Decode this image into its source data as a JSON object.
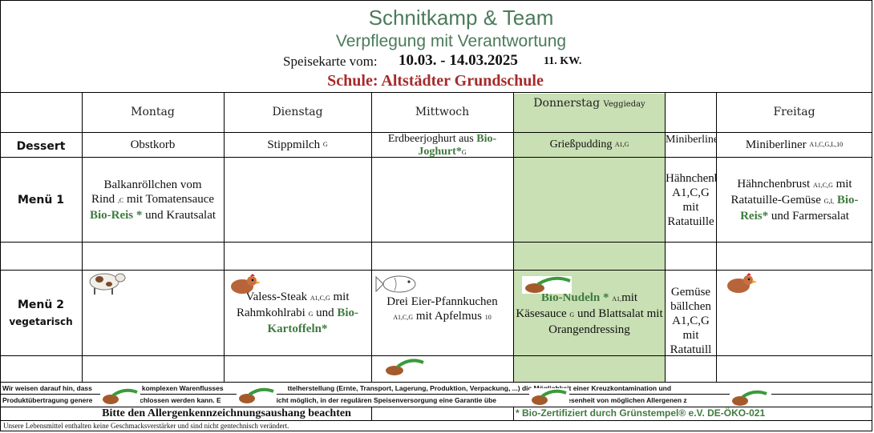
{
  "header": {
    "company": "Schnitkamp & Team",
    "slogan": "Verpflegung mit Verantwortung",
    "menu_label": "Speisekarte vom:",
    "date_range": "10.03. - 14.03.2025",
    "week": "11. KW.",
    "school": "Schule: Altstädter Grundschule"
  },
  "days": {
    "mon": "Montag",
    "tue": "Dienstag",
    "wed": "Mittwoch",
    "thu": "Donnerstag",
    "thu_tag": "Veggieday",
    "fri": "Freitag"
  },
  "rows": {
    "dessert": "Dessert",
    "menu1": "Menü 1",
    "menu2": "Menü 2",
    "menu2_sub": "vegetarisch"
  },
  "dessert": {
    "mon": "Obstkorb",
    "tue": "Stippmilch",
    "tue_allergens": "G",
    "wed": "Erdbeerjoghurt aus",
    "wed_bio": "Bio-Joghurt*",
    "wed_allergens": "G",
    "thu": "Grießpudding",
    "thu_allergens": "A1,G",
    "col5": "Miniberliner",
    "fri": "Miniberliner",
    "fri_allergens": "A1,C,G,L,10"
  },
  "menu1": {
    "mon_a": "Balkanröllchen vom Rind",
    "mon_allergens": ",C",
    "mon_b": "mit Tomatensauce",
    "mon_bio": "Bio-Reis *",
    "mon_c": "und Krautsalat",
    "col5": "Hähnchenbrust A1,C,G mit Ratatuille",
    "fri_a": "Hähnchenbrust",
    "fri_allergens1": "A1,C,G",
    "fri_b": "mit Ratatuille-Gemüse",
    "fri_allergens2": "G,I,",
    "fri_bio": "Bio-Reis*",
    "fri_c": "und Farmersalat"
  },
  "menu2": {
    "tue_a": "Valess-Steak",
    "tue_allergens1": "A1,C,G",
    "tue_b": "mit Rahmkohlrabi",
    "tue_allergens2": "G",
    "tue_c": "und",
    "tue_bio": "Bio-Kartoffeln*",
    "wed_a": "Drei Eier-Pfannkuchen",
    "wed_allergens": "A1,C,G",
    "wed_b": "mit Apfelmus",
    "wed_allergens2": "10",
    "thu_bio": "Bio-Nudeln *",
    "thu_allergens1": "A1,",
    "thu_a": "mit Käsesauce",
    "thu_allergens2": "G",
    "thu_b": "und Blattsalat mit Orangendressing",
    "col5": "Gemüse bällchen A1,C,G mit Ratatuill"
  },
  "footer": {
    "note1a": "Wir weisen darauf hin, dass",
    "note1b": "komplexen Warenflusses",
    "note1c": "ttelherstellung (Ernte, Transport, Lagerung, Produktion, Verpackung, ...) die Möglichkeit einer Kreuzkontamination und",
    "note2a": "Produktübertragung genere",
    "note2b": "schlossen werden kann. E",
    "note2c": "r nicht möglich, in der regulären Speisenversorgung eine Garantie übe",
    "note2d": "ige Abwesenheit von möglichen Allergenen z",
    "allergen_notice": "Bitte den  Allergenkennzeichnungsaushang beachten",
    "bio_cert": "* Bio-Zertifiziert durch Grünstempel® e.V. DE-ÖKO-021",
    "additives": "Unsere Lebensmittel enthalten keine Geschmacksverstärker und sind nicht gentechnisch verändert."
  },
  "colors": {
    "green_header": "#4b7b5a",
    "red_school": "#a62b2b",
    "veggie_bg": "#c9dfb4",
    "bio_green": "#3f7a3f"
  }
}
